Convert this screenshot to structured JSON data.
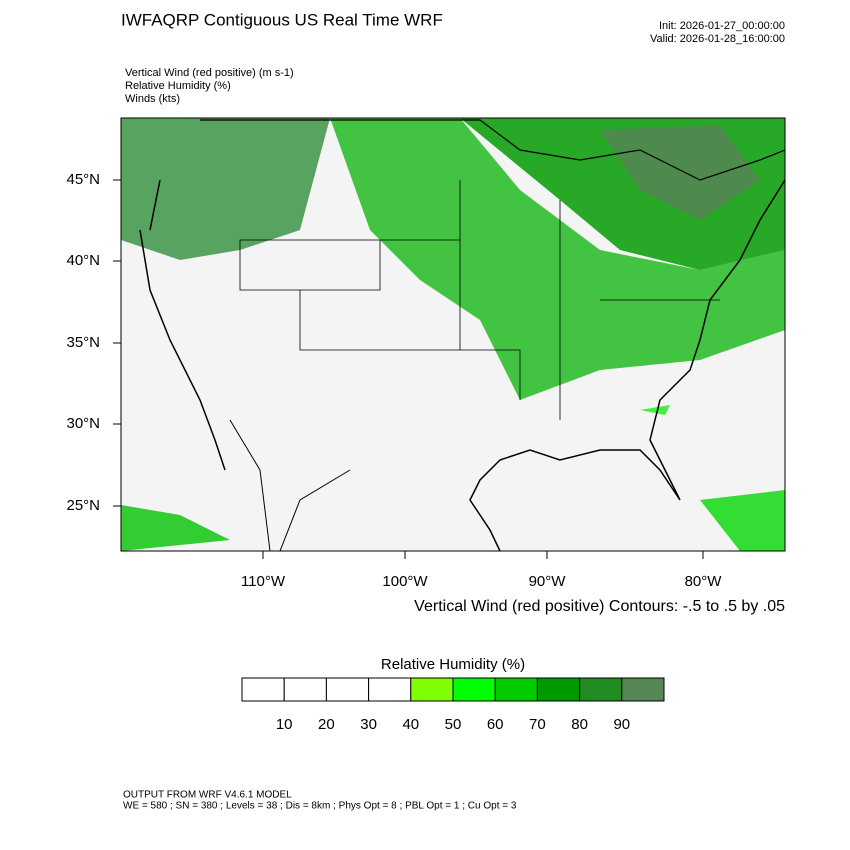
{
  "header": {
    "title": "IWFAQRP Contiguous US Real Time WRF",
    "init": "Init: 2026-01-27_00:00:00",
    "valid": "Valid: 2026-01-28_16:00:00"
  },
  "fields": [
    "Vertical Wind (red positive)   (m s-1)",
    "Relative Humidity   (%)",
    "Winds   (kts)"
  ],
  "map": {
    "lat_labels": [
      "45°N",
      "40°N",
      "35°N",
      "30°N",
      "25°N"
    ],
    "lon_labels": [
      "110°W",
      "100°W",
      "90°W",
      "80°W"
    ]
  },
  "contour_note": "Vertical Wind (red positive) Contours: -.5 to .5 by .05",
  "colorbar": {
    "title": "Relative Humidity  (%)",
    "colors": [
      "#ffffff",
      "#ffffff",
      "#ffffff",
      "#ffffff",
      "#80ff00",
      "#00ff00",
      "#00cc00",
      "#009900",
      "#228b22",
      "#558855"
    ],
    "labels": [
      10,
      20,
      30,
      40,
      50,
      60,
      70,
      80,
      90
    ]
  },
  "footer": [
    "OUTPUT FROM WRF V4.6.1 MODEL",
    "WE = 580 ; SN = 380 ; Levels = 38 ; Dis = 8km ; Phys Opt = 8 ; PBL Opt = 1 ; Cu Opt = 3"
  ]
}
